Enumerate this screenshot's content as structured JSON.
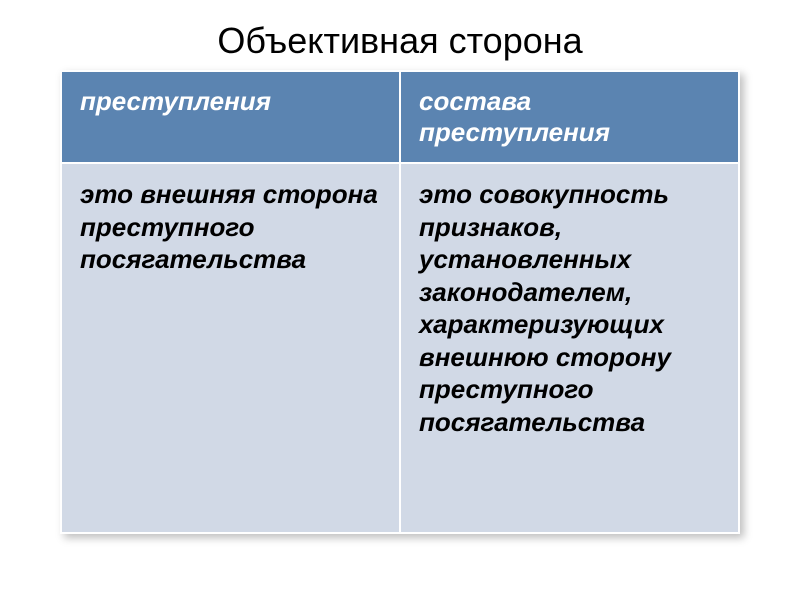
{
  "title": "Объективная сторона",
  "table": {
    "header_bg": "#5b84b1",
    "body_bg": "#d1d9e6",
    "header_text_color": "#ffffff",
    "body_text_color": "#000000",
    "border_color": "#ffffff",
    "font_family": "Arial",
    "header_fontsize": 26,
    "body_fontsize": 26,
    "columns": [
      {
        "header": "преступления",
        "body": "это внешняя сторона преступного посягательства"
      },
      {
        "header": "состава преступления",
        "body": "это совокупность признаков, установленных законодателем, характеризующих внешнюю сторону преступного посягательства"
      }
    ]
  }
}
